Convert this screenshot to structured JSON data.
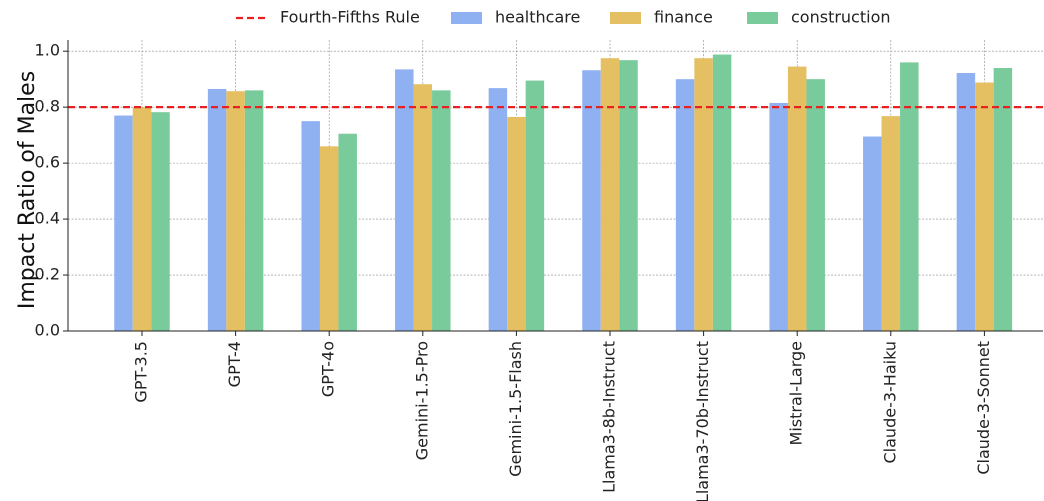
{
  "chart_data": {
    "type": "bar",
    "title": "",
    "xlabel": "",
    "ylabel": "Impact Ratio of Males",
    "ylim": [
      0,
      1.04
    ],
    "yticks": [
      "0.0",
      "0.2",
      "0.4",
      "0.6",
      "0.8",
      "1.0"
    ],
    "grid": true,
    "legend_position": "top",
    "categories": [
      "GPT-3.5",
      "GPT-4",
      "GPT-4o",
      "Gemini-1.5-Pro",
      "Gemini-1.5-Flash",
      "Llama3-8b-Instruct",
      "Llama3-70b-Instruct",
      "Mistral-Large",
      "Claude-3-Haiku",
      "Claude-3-Sonnet"
    ],
    "series": [
      {
        "name": "healthcare",
        "color": "#8fb1f2",
        "values": [
          0.77,
          0.865,
          0.75,
          0.935,
          0.868,
          0.932,
          0.9,
          0.815,
          0.695,
          0.922
        ]
      },
      {
        "name": "finance",
        "color": "#e5c063",
        "values": [
          0.8,
          0.857,
          0.66,
          0.882,
          0.765,
          0.975,
          0.975,
          0.945,
          0.768,
          0.888
        ]
      },
      {
        "name": "construction",
        "color": "#7acb9b",
        "values": [
          0.782,
          0.86,
          0.705,
          0.86,
          0.895,
          0.968,
          0.988,
          0.9,
          0.96,
          0.94
        ]
      }
    ],
    "reference_line": {
      "name": "Fourth-Fifths Rule",
      "value": 0.8,
      "color": "#e82020",
      "style": "dashed"
    }
  }
}
